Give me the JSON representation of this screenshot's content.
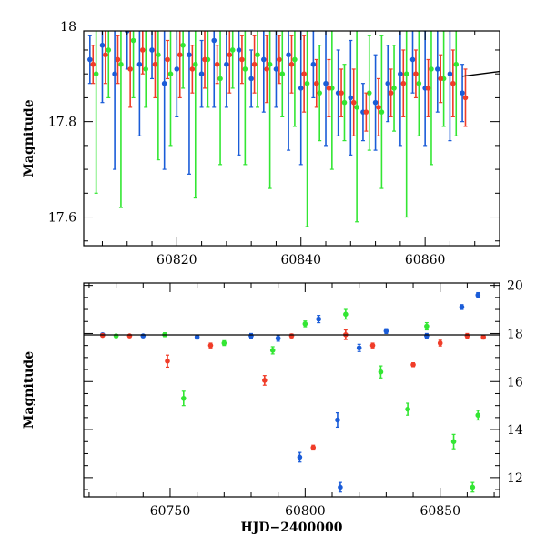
{
  "chart_data": [
    {
      "type": "scatter",
      "panel": "top",
      "title": "",
      "xlabel": "",
      "ylabel": "Magnitude",
      "xlim": [
        60805,
        60872
      ],
      "ylim": [
        17.99,
        17.54
      ],
      "y_inverted": true,
      "x_ticks": [
        60820,
        60840,
        60860
      ],
      "y_ticks": [
        17.6,
        17.8,
        18
      ],
      "y_tick_labels": [
        "17.6",
        "17.8",
        "18"
      ],
      "grid": false,
      "legend": "none",
      "series": [
        {
          "color": "#1a5cd8",
          "x": [
            60806,
            60808,
            60810,
            60812,
            60814,
            60816,
            60818,
            60820,
            60822,
            60824,
            60826,
            60828,
            60830,
            60832,
            60834,
            60836,
            60838,
            60840,
            60842,
            60844,
            60846,
            60848,
            60850,
            60852,
            60854,
            60856,
            60858,
            60860,
            60862,
            60864,
            60866
          ],
          "y": [
            17.93,
            17.96,
            17.9,
            17.99,
            17.92,
            17.95,
            17.88,
            17.91,
            17.94,
            17.9,
            17.97,
            17.92,
            17.95,
            17.89,
            17.93,
            17.91,
            17.94,
            17.87,
            17.92,
            17.88,
            17.86,
            17.85,
            17.82,
            17.84,
            17.88,
            17.9,
            17.93,
            17.87,
            17.91,
            17.9,
            17.86
          ],
          "err": [
            0.05,
            0.12,
            0.2,
            0.08,
            0.15,
            0.06,
            0.18,
            0.1,
            0.25,
            0.07,
            0.14,
            0.09,
            0.22,
            0.06,
            0.11,
            0.08,
            0.2,
            0.16,
            0.07,
            0.13,
            0.09,
            0.12,
            0.06,
            0.1,
            0.08,
            0.15,
            0.07,
            0.12,
            0.09,
            0.14,
            0.06
          ]
        },
        {
          "color": "#33e633",
          "x": [
            60807,
            60809,
            60811,
            60813,
            60815,
            60817,
            60819,
            60821,
            60823,
            60825,
            60827,
            60829,
            60831,
            60833,
            60835,
            60837,
            60839,
            60841,
            60843,
            60845,
            60847,
            60849,
            60851,
            60853,
            60855,
            60857,
            60859,
            60861,
            60863,
            60865
          ],
          "y": [
            17.9,
            17.95,
            17.92,
            17.97,
            17.91,
            17.94,
            17.9,
            17.96,
            17.92,
            17.93,
            17.89,
            17.95,
            17.91,
            17.94,
            17.92,
            17.9,
            17.93,
            17.88,
            17.86,
            17.87,
            17.84,
            17.83,
            17.86,
            17.82,
            17.87,
            17.9,
            17.88,
            17.91,
            17.89,
            17.92
          ],
          "err": [
            0.25,
            0.1,
            0.3,
            0.12,
            0.08,
            0.22,
            0.15,
            0.09,
            0.28,
            0.1,
            0.18,
            0.08,
            0.2,
            0.11,
            0.26,
            0.09,
            0.14,
            0.3,
            0.1,
            0.17,
            0.08,
            0.24,
            0.12,
            0.16,
            0.09,
            0.3,
            0.11,
            0.2,
            0.1,
            0.15
          ]
        },
        {
          "color": "#f03c28",
          "x": [
            60806.5,
            60808.5,
            60810.5,
            60812.5,
            60814.5,
            60816.5,
            60818.5,
            60820.5,
            60822.5,
            60824.5,
            60826.5,
            60828.5,
            60830.5,
            60832.5,
            60834.5,
            60836.5,
            60838.5,
            60840.5,
            60842.5,
            60844.5,
            60846.5,
            60848.5,
            60850.5,
            60852.5,
            60854.5,
            60856.5,
            60858.5,
            60860.5,
            60862.5,
            60864.5,
            60866.5
          ],
          "y": [
            17.92,
            17.94,
            17.93,
            17.91,
            17.95,
            17.92,
            17.93,
            17.94,
            17.91,
            17.93,
            17.92,
            17.94,
            17.93,
            17.92,
            17.91,
            17.93,
            17.92,
            17.9,
            17.88,
            17.87,
            17.86,
            17.84,
            17.82,
            17.83,
            17.86,
            17.88,
            17.9,
            17.87,
            17.89,
            17.88,
            17.85
          ],
          "err": [
            0.04,
            0.06,
            0.05,
            0.08,
            0.05,
            0.07,
            0.04,
            0.09,
            0.05,
            0.06,
            0.04,
            0.08,
            0.05,
            0.06,
            0.07,
            0.05,
            0.06,
            0.08,
            0.05,
            0.06,
            0.05,
            0.07,
            0.04,
            0.06,
            0.05,
            0.07,
            0.05,
            0.06,
            0.05,
            0.07,
            0.06
          ]
        }
      ],
      "model_line": {
        "color": "#000000",
        "x": [
          60866,
          60869,
          60872
        ],
        "y": [
          17.895,
          17.9,
          17.905
        ]
      }
    },
    {
      "type": "scatter",
      "panel": "bottom",
      "title": "",
      "xlabel": "HJD−2400000",
      "ylabel": "Magnitude",
      "xlim": [
        60718,
        60872
      ],
      "ylim": [
        20.1,
        11.2
      ],
      "y_inverted": true,
      "x_ticks": [
        60750,
        60800,
        60850
      ],
      "y_ticks": [
        12,
        14,
        16,
        18,
        20
      ],
      "y_tick_labels": [
        "12",
        "14",
        "16",
        "18",
        "20"
      ],
      "grid": false,
      "legend": "none",
      "series": [
        {
          "color": "#1a5cd8",
          "x": [
            60725,
            60740,
            60760,
            60780,
            60790,
            60798,
            60805,
            60812,
            60813,
            60820,
            60830,
            60845,
            60858,
            60864
          ],
          "y": [
            17.95,
            17.9,
            17.85,
            17.9,
            17.8,
            12.85,
            18.6,
            14.4,
            11.6,
            17.4,
            18.1,
            17.9,
            19.1,
            19.6
          ],
          "err": [
            0.05,
            0.05,
            0.08,
            0.1,
            0.12,
            0.2,
            0.15,
            0.3,
            0.2,
            0.15,
            0.1,
            0.1,
            0.1,
            0.1
          ]
        },
        {
          "color": "#33e633",
          "x": [
            60730,
            60748,
            60755,
            60770,
            60788,
            60800,
            60815,
            60828,
            60838,
            60845,
            60855,
            60862,
            60864
          ],
          "y": [
            17.9,
            17.95,
            15.3,
            17.6,
            17.3,
            18.4,
            18.8,
            16.4,
            14.85,
            18.3,
            13.5,
            11.6,
            14.6
          ],
          "err": [
            0.05,
            0.08,
            0.3,
            0.1,
            0.15,
            0.12,
            0.2,
            0.25,
            0.25,
            0.15,
            0.3,
            0.2,
            0.2
          ]
        },
        {
          "color": "#f03c28",
          "x": [
            60725,
            60735,
            60749,
            60765,
            60785,
            60795,
            60803,
            60815,
            60825,
            60840,
            60850,
            60860,
            60866
          ],
          "y": [
            17.92,
            17.9,
            16.85,
            17.5,
            16.05,
            17.9,
            13.25,
            17.95,
            17.5,
            16.7,
            17.6,
            17.9,
            17.85
          ],
          "err": [
            0.04,
            0.05,
            0.25,
            0.1,
            0.2,
            0.08,
            0.1,
            0.2,
            0.1,
            0.08,
            0.12,
            0.1,
            0.08
          ]
        }
      ],
      "model_line": {
        "color": "#000000",
        "x": [
          60718,
          60872
        ],
        "y": [
          17.94,
          17.94
        ]
      }
    }
  ]
}
